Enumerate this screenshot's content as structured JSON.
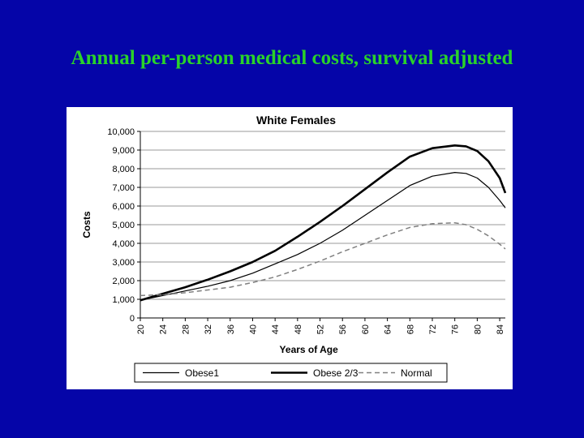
{
  "slide": {
    "title": "Annual per-person medical costs, survival adjusted",
    "title_color": "#2ad22a",
    "background_color": "#0505a8"
  },
  "chart_data": {
    "type": "line",
    "title": "White Females",
    "xlabel": "Years of Age",
    "ylabel": "Costs",
    "xlim": [
      20,
      85
    ],
    "ylim": [
      0,
      10000
    ],
    "x_ticks": [
      20,
      24,
      28,
      32,
      36,
      40,
      44,
      48,
      52,
      56,
      60,
      64,
      68,
      72,
      76,
      80,
      84
    ],
    "y_ticks": [
      0,
      1000,
      2000,
      3000,
      4000,
      5000,
      6000,
      7000,
      8000,
      9000,
      10000
    ],
    "y_tick_labels": [
      "0",
      "1,000",
      "2,000",
      "3,000",
      "4,000",
      "5,000",
      "6,000",
      "7,000",
      "8,000",
      "9,000",
      "10,000"
    ],
    "grid": "horizontal",
    "legend_position": "bottom",
    "x": [
      20,
      24,
      28,
      32,
      36,
      40,
      44,
      48,
      52,
      56,
      60,
      64,
      68,
      72,
      76,
      78,
      80,
      82,
      84,
      85
    ],
    "series": [
      {
        "name": "Obese1",
        "style": "thin-solid",
        "color": "#000000",
        "values": [
          950,
          1200,
          1450,
          1700,
          2000,
          2400,
          2900,
          3400,
          4000,
          4700,
          5500,
          6300,
          7100,
          7600,
          7800,
          7750,
          7500,
          7000,
          6300,
          5900
        ]
      },
      {
        "name": "Obese 2/3",
        "style": "thick-solid",
        "color": "#000000",
        "values": [
          950,
          1300,
          1650,
          2050,
          2500,
          3000,
          3600,
          4350,
          5150,
          6000,
          6900,
          7800,
          8650,
          9100,
          9250,
          9200,
          8950,
          8400,
          7500,
          6700
        ]
      },
      {
        "name": "Normal",
        "style": "dashed",
        "color": "#808080",
        "values": [
          1200,
          1250,
          1350,
          1500,
          1650,
          1900,
          2200,
          2600,
          3050,
          3550,
          4000,
          4450,
          4850,
          5050,
          5100,
          5000,
          4750,
          4400,
          3950,
          3700
        ]
      }
    ]
  }
}
